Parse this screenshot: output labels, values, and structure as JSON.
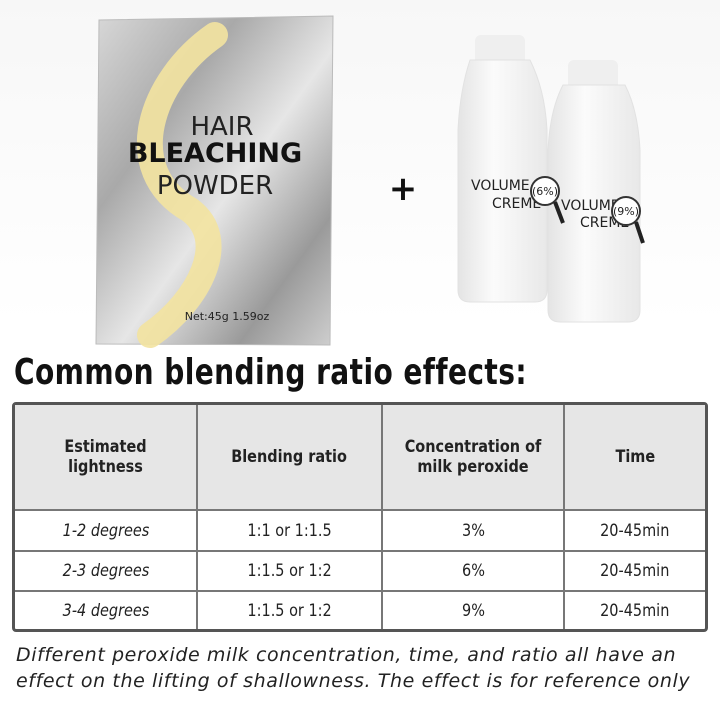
{
  "product": {
    "packet": {
      "line1": "HAIR",
      "line2": "BLEACHING",
      "line3": "POWDER",
      "net": "Net:45g 1.59oz"
    },
    "plus": "+",
    "bottles": [
      {
        "label1": "VOLUME",
        "label2": "CREME",
        "strength": "(6%)"
      },
      {
        "label1": "VOLUME",
        "label2": "CREME",
        "strength": "(9%)"
      }
    ]
  },
  "heading": "Common blending ratio effects:",
  "table": {
    "header": [
      "Estimated lightness",
      "Blending ratio",
      "Concentration of milk peroxide",
      "Time"
    ],
    "rows": [
      [
        "1-2 degrees",
        "1:1 or 1:1.5",
        "3%",
        "20-45min"
      ],
      [
        "2-3 degrees",
        "1:1.5 or 1:2",
        "6%",
        "20-45min"
      ],
      [
        "3-4 degrees",
        "1:1.5 or 1:2",
        "9%",
        "20-45min"
      ]
    ]
  },
  "note": "Different peroxide milk concentration, time, and ratio all have an effect on the lifting of shallowness. The effect is for reference only"
}
